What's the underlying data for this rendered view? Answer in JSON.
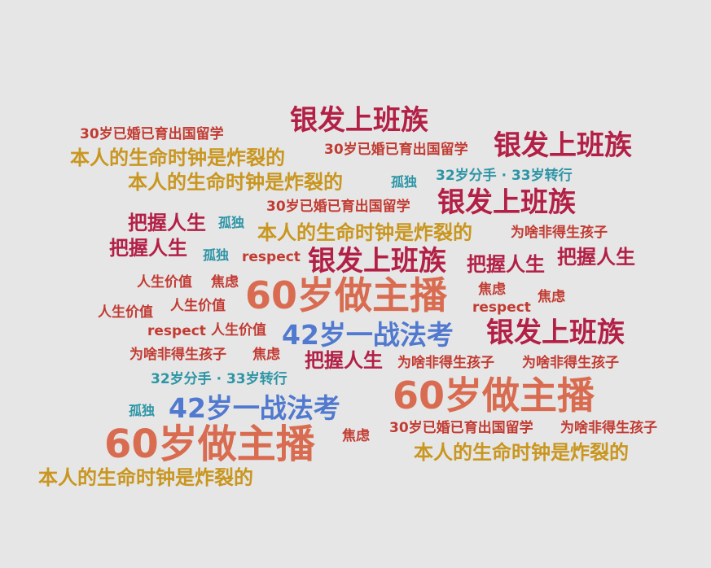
{
  "colors": {
    "background": "#e6e6e6",
    "red": "#b32046",
    "orange": "#d96c50",
    "gold": "#c9961f",
    "teal": "#2d95a6",
    "blue": "#5079cf",
    "brick": "#c23b32"
  },
  "words": [
    {
      "text": "银发上班族",
      "color": "red"
    },
    {
      "text": "30岁已婚已育出国留学",
      "color": "brick"
    },
    {
      "text": "本人的生命时钟是炸裂的",
      "color": "gold"
    },
    {
      "text": "30岁已婚已育出国留学",
      "color": "brick"
    },
    {
      "text": "银发上班族",
      "color": "red"
    },
    {
      "text": "本人的生命时钟是炸裂的",
      "color": "gold"
    },
    {
      "text": "孤独",
      "color": "teal"
    },
    {
      "text": "32岁分手 · 33岁转行",
      "color": "teal"
    },
    {
      "text": "30岁已婚已育出国留学",
      "color": "brick"
    },
    {
      "text": "银发上班族",
      "color": "red"
    },
    {
      "text": "把握人生",
      "color": "red"
    },
    {
      "text": "孤独",
      "color": "teal"
    },
    {
      "text": "本人的生命时钟是炸裂的",
      "color": "gold"
    },
    {
      "text": "为啥非得生孩子",
      "color": "brick"
    },
    {
      "text": "把握人生",
      "color": "red"
    },
    {
      "text": "孤独",
      "color": "teal"
    },
    {
      "text": "respect",
      "color": "brick"
    },
    {
      "text": "银发上班族",
      "color": "red"
    },
    {
      "text": "把握人生",
      "color": "red"
    },
    {
      "text": "把握人生",
      "color": "red"
    },
    {
      "text": "人生价值",
      "color": "brick"
    },
    {
      "text": "焦虑",
      "color": "brick"
    },
    {
      "text": "60岁做主播",
      "color": "orange"
    },
    {
      "text": "焦虑",
      "color": "brick"
    },
    {
      "text": "焦虑",
      "color": "brick"
    },
    {
      "text": "人生价值",
      "color": "brick"
    },
    {
      "text": "人生价值",
      "color": "brick"
    },
    {
      "text": "respect",
      "color": "brick"
    },
    {
      "text": "respect",
      "color": "brick"
    },
    {
      "text": "人生价值",
      "color": "brick"
    },
    {
      "text": "42岁一战法考",
      "color": "blue"
    },
    {
      "text": "银发上班族",
      "color": "red"
    },
    {
      "text": "为啥非得生孩子",
      "color": "brick"
    },
    {
      "text": "焦虑",
      "color": "brick"
    },
    {
      "text": "把握人生",
      "color": "red"
    },
    {
      "text": "为啥非得生孩子",
      "color": "brick"
    },
    {
      "text": "为啥非得生孩子",
      "color": "brick"
    },
    {
      "text": "32岁分手 · 33岁转行",
      "color": "teal"
    },
    {
      "text": "60岁做主播",
      "color": "orange"
    },
    {
      "text": "孤独",
      "color": "teal"
    },
    {
      "text": "42岁一战法考",
      "color": "blue"
    },
    {
      "text": "60岁做主播",
      "color": "orange"
    },
    {
      "text": "焦虑",
      "color": "brick"
    },
    {
      "text": "30岁已婚已育出国留学",
      "color": "brick"
    },
    {
      "text": "为啥非得生孩子",
      "color": "brick"
    },
    {
      "text": "本人的生命时钟是炸裂的",
      "color": "gold"
    },
    {
      "text": "本人的生命时钟是炸裂的",
      "color": "gold"
    }
  ]
}
